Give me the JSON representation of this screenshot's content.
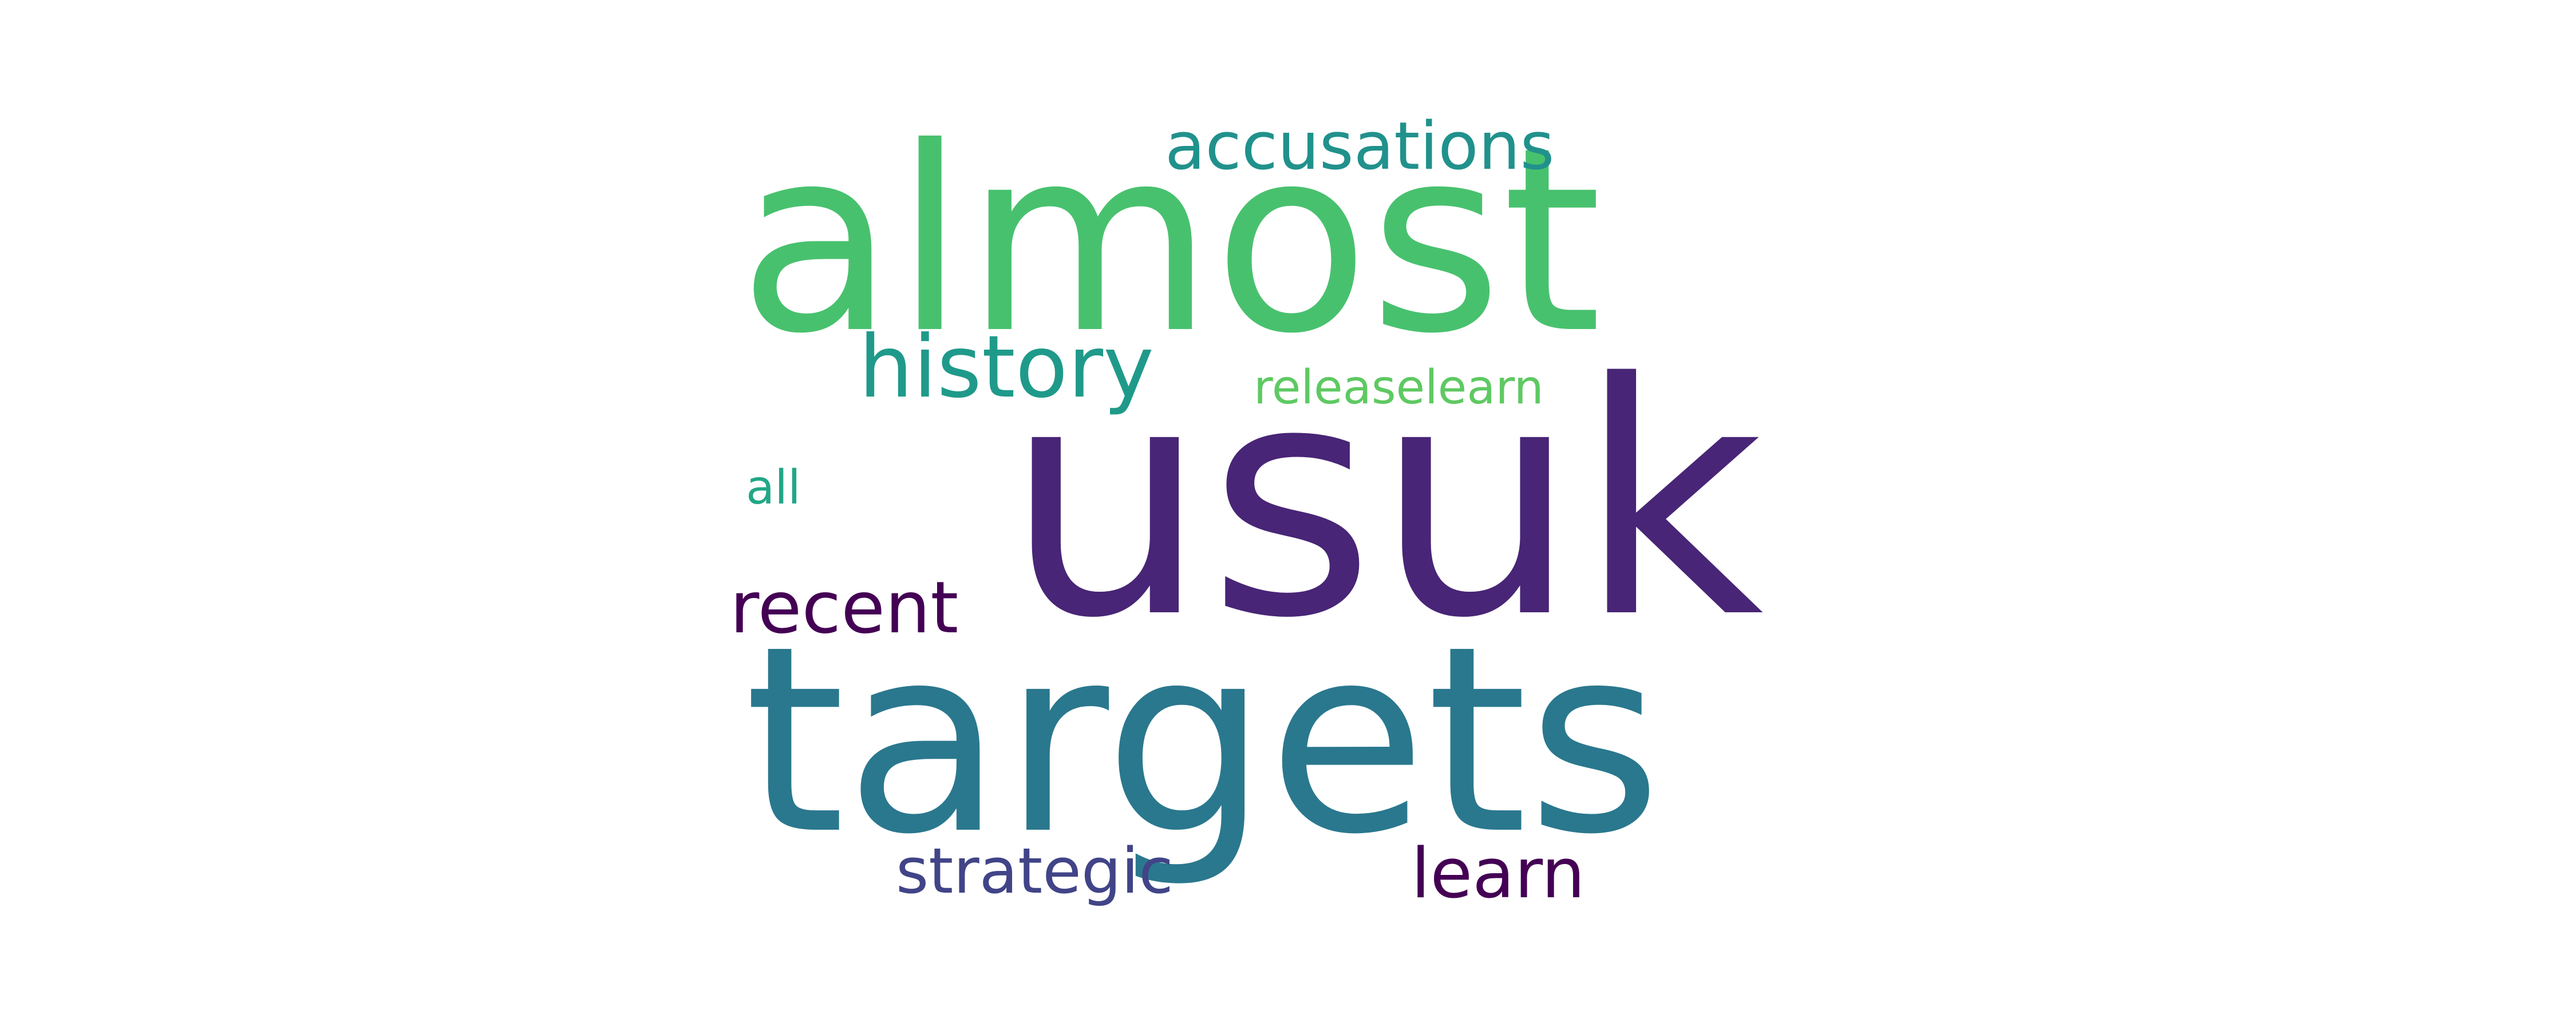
{
  "words": [
    {
      "text": "usuk",
      "color": "#482576"
    },
    {
      "text": "targets",
      "color": "#2a788e"
    },
    {
      "text": "almost",
      "color": "#48c16e"
    },
    {
      "text": "history",
      "color": "#1f9a8a"
    },
    {
      "text": "accusations",
      "color": "#21918c"
    },
    {
      "text": "releaselearn",
      "color": "#5ec962"
    },
    {
      "text": "recent",
      "color": "#440154"
    },
    {
      "text": "all",
      "color": "#22a785"
    },
    {
      "text": "strategic",
      "color": "#414487"
    },
    {
      "text": "learn",
      "color": "#440154"
    }
  ]
}
